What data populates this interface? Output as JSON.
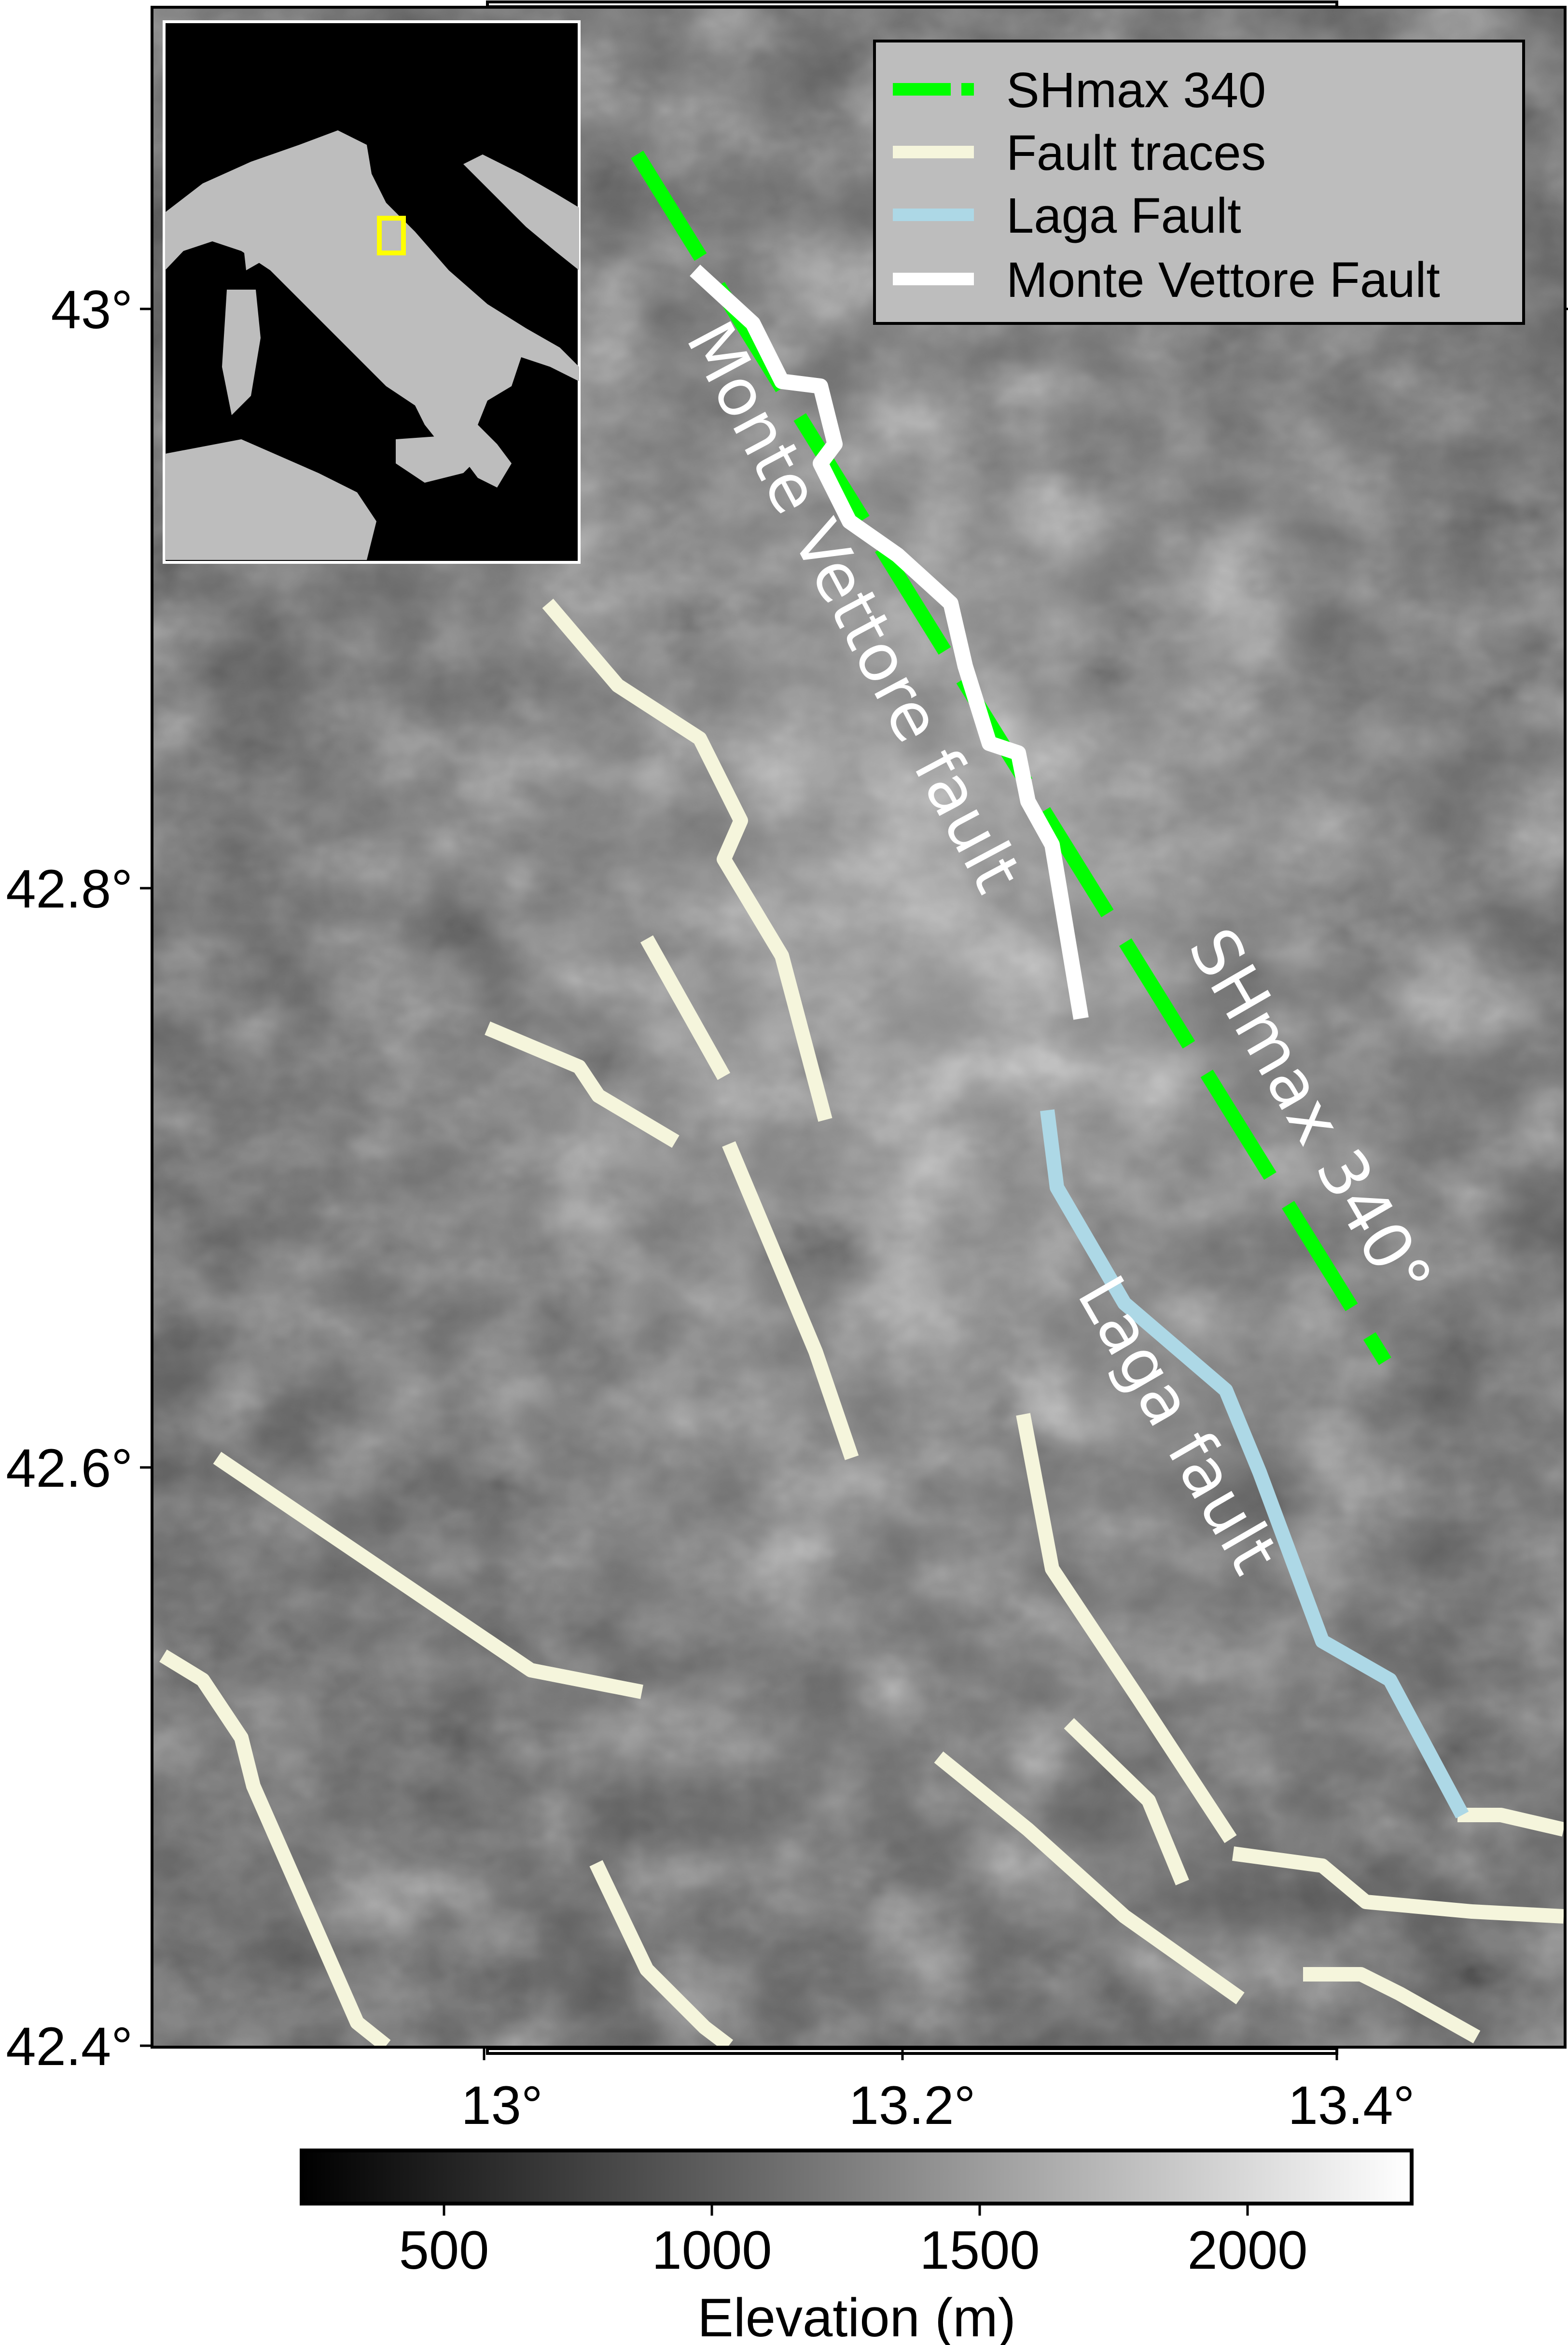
{
  "map": {
    "y_ticks": [
      "43°",
      "42.8°",
      "42.6°",
      "42.4°"
    ],
    "x_ticks": [
      "13°",
      "13.2°",
      "13.4°"
    ],
    "fault_labels": {
      "monte_vettore": "Monte Vettore fault",
      "shmax": "SHmax 340°",
      "laga": "Laga fault"
    }
  },
  "legend": {
    "items": [
      {
        "label": "SHmax 340",
        "color": "#00ff00",
        "style": "dashed"
      },
      {
        "label": "Fault traces",
        "color": "#f5f5dc",
        "style": "solid"
      },
      {
        "label": "Laga Fault",
        "color": "#add8e6",
        "style": "solid"
      },
      {
        "label": "Monte Vettore Fault",
        "color": "#ffffff",
        "style": "solid"
      }
    ]
  },
  "inset": {
    "description_icon": "italy-locator-map",
    "box_color": "#ffff00"
  },
  "colorbar": {
    "ticks": [
      "500",
      "1000",
      "1500",
      "2000"
    ],
    "label": "Elevation (m)"
  },
  "colors": {
    "shmax": "#00ff00",
    "fault_traces": "#f5f5dc",
    "laga": "#add8e6",
    "monte_vettore": "#ffffff"
  }
}
